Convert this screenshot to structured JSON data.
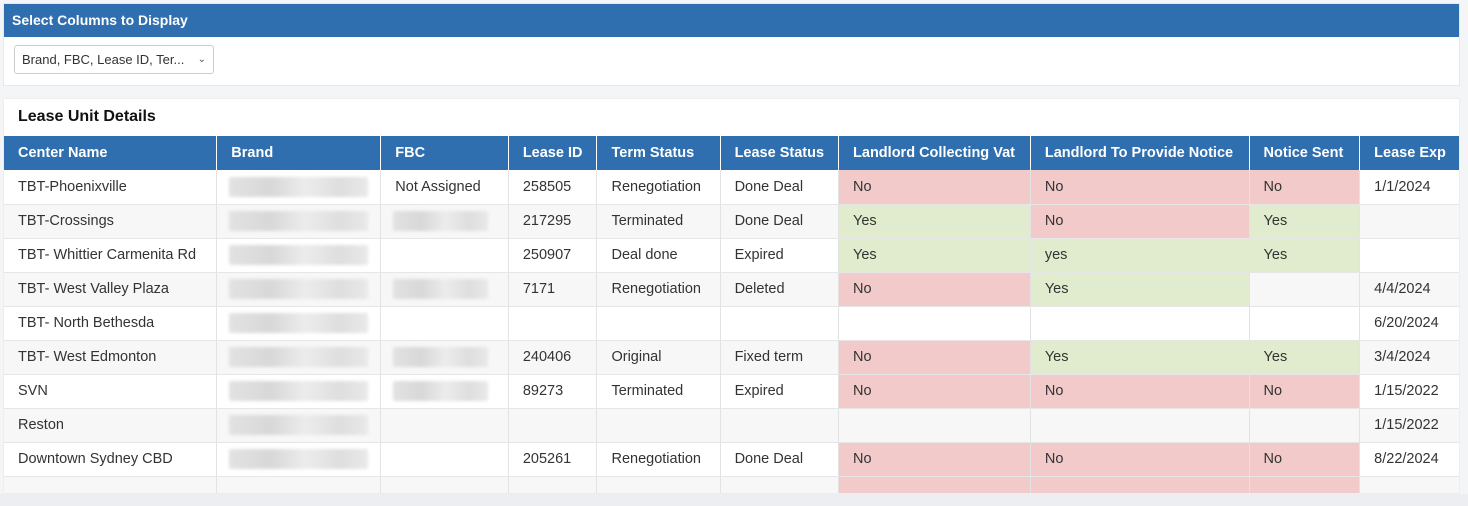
{
  "column_panel": {
    "title": "Select Columns to Display",
    "selected_columns": "Brand, FBC, Lease ID, Ter..."
  },
  "table": {
    "title": "Lease Unit Details",
    "headers": [
      "Center Name",
      "Brand",
      "FBC",
      "Lease ID",
      "Term Status",
      "Lease Status",
      "Landlord Collecting Vat",
      "Landlord To Provide Notice",
      "Notice Sent",
      "Lease Exp"
    ],
    "rows": [
      {
        "center": "TBT-Phoenixville",
        "fbc": "Not Assigned",
        "lease_id": "258505",
        "term_status": "Renegotiation",
        "lease_status": "Done Deal",
        "vat": "No",
        "notice_provide": "No",
        "notice_sent": "No",
        "lease_exp": "1/1/2024"
      },
      {
        "center": "TBT-Crossings",
        "fbc": "",
        "lease_id": "217295",
        "term_status": "Terminated",
        "lease_status": "Done Deal",
        "vat": "Yes",
        "notice_provide": "No",
        "notice_sent": "Yes",
        "lease_exp": ""
      },
      {
        "center": "TBT- Whittier Carmenita Rd",
        "fbc": "",
        "lease_id": "250907",
        "term_status": "Deal done",
        "lease_status": "Expired",
        "vat": "Yes",
        "notice_provide": "yes",
        "notice_sent": "Yes",
        "lease_exp": ""
      },
      {
        "center": "TBT- West Valley Plaza",
        "fbc": "",
        "lease_id": "7171",
        "term_status": "Renegotiation",
        "lease_status": "Deleted",
        "vat": "No",
        "notice_provide": "Yes",
        "notice_sent": "",
        "lease_exp": "4/4/2024"
      },
      {
        "center": "TBT- North Bethesda",
        "fbc": "",
        "lease_id": "",
        "term_status": "",
        "lease_status": "",
        "vat": "",
        "notice_provide": "",
        "notice_sent": "",
        "lease_exp": "6/20/2024"
      },
      {
        "center": "TBT-  West Edmonton",
        "fbc": "",
        "lease_id": "240406",
        "term_status": "Original",
        "lease_status": "Fixed term",
        "vat": "No",
        "notice_provide": "Yes",
        "notice_sent": "Yes",
        "lease_exp": "3/4/2024"
      },
      {
        "center": "SVN",
        "fbc": "",
        "lease_id": "89273",
        "term_status": "Terminated",
        "lease_status": "Expired",
        "vat": "No",
        "notice_provide": "No",
        "notice_sent": "No",
        "lease_exp": "1/15/2022"
      },
      {
        "center": "Reston",
        "fbc": "",
        "lease_id": "",
        "term_status": "",
        "lease_status": "",
        "vat": "",
        "notice_provide": "",
        "notice_sent": "",
        "lease_exp": "1/15/2022"
      },
      {
        "center": "Downtown Sydney CBD",
        "fbc": "",
        "lease_id": "205261",
        "term_status": "Renegotiation",
        "lease_status": "Done Deal",
        "vat": "No",
        "notice_provide": "No",
        "notice_sent": "No",
        "lease_exp": "8/22/2024"
      }
    ]
  },
  "colors": {
    "header_blue": "#2f6fb0",
    "no_cell": "#f2caca",
    "yes_cell": "#e0eccd"
  }
}
